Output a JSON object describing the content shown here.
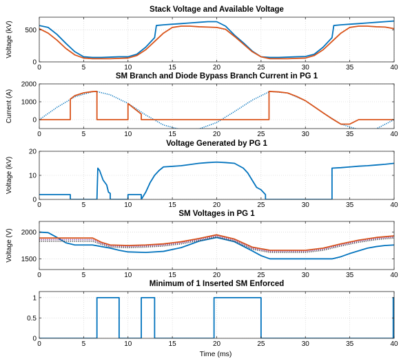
{
  "figure": {
    "xlabel": "Time (ms)"
  },
  "chart_data": [
    {
      "type": "line",
      "title": "Stack Voltage and Available Voltage",
      "ylabel": "Voltage (kV)",
      "xlim": [
        0,
        40
      ],
      "ylim": [
        0,
        700
      ],
      "xticks": [
        0,
        5,
        10,
        15,
        20,
        25,
        30,
        35,
        40
      ],
      "yticks": [
        0,
        500
      ],
      "grid": true,
      "series": [
        {
          "color": "#0072BD",
          "style": "solid",
          "x": [
            0,
            1,
            2,
            3,
            4,
            5,
            6,
            7,
            8,
            9,
            10,
            11,
            12,
            13,
            13.2,
            14,
            15,
            16,
            17,
            18,
            19,
            20,
            21,
            22,
            23,
            24,
            25,
            26,
            27,
            28,
            29,
            30,
            31,
            32,
            33,
            33.2,
            34,
            35,
            36,
            37,
            38,
            39,
            40
          ],
          "y": [
            570,
            540,
            430,
            290,
            160,
            80,
            70,
            70,
            75,
            80,
            80,
            120,
            230,
            380,
            570,
            580,
            590,
            600,
            610,
            620,
            630,
            630,
            560,
            420,
            300,
            170,
            80,
            70,
            70,
            75,
            80,
            85,
            120,
            230,
            380,
            570,
            580,
            590,
            600,
            610,
            620,
            630,
            640
          ]
        },
        {
          "color": "#D95319",
          "style": "solid",
          "x": [
            0,
            1,
            2,
            3,
            4,
            5,
            6,
            7,
            8,
            9,
            10,
            11,
            12,
            13,
            14,
            15,
            16,
            17,
            18,
            19,
            20,
            21,
            22,
            23,
            24,
            25,
            26,
            27,
            28,
            29,
            30,
            31,
            32,
            33,
            34,
            35,
            36,
            37,
            38,
            39,
            40
          ],
          "y": [
            520,
            450,
            340,
            210,
            110,
            60,
            50,
            50,
            50,
            55,
            60,
            100,
            190,
            320,
            450,
            540,
            560,
            560,
            550,
            545,
            540,
            510,
            400,
            280,
            160,
            80,
            50,
            50,
            50,
            55,
            60,
            100,
            190,
            320,
            450,
            540,
            560,
            560,
            550,
            545,
            520
          ]
        }
      ]
    },
    {
      "type": "line",
      "title": "SM Branch and Diode Bypass Branch Current in PG 1",
      "ylabel": "Current (A)",
      "xlim": [
        0,
        40
      ],
      "ylim": [
        -500,
        2000
      ],
      "xticks": [
        0,
        5,
        10,
        15,
        20,
        25,
        30,
        35,
        40
      ],
      "yticks": [
        0,
        1000,
        2000
      ],
      "grid": true,
      "series": [
        {
          "color": "#0072BD",
          "style": "dotted",
          "x": [
            0,
            2,
            4,
            6,
            6.4,
            8,
            10,
            12,
            14,
            16,
            18,
            20,
            22,
            24,
            26,
            28,
            30,
            32,
            34,
            36,
            38,
            40
          ],
          "y": [
            0,
            690,
            1280,
            1560,
            1580,
            1390,
            910,
            260,
            -300,
            -560,
            -520,
            -160,
            450,
            1090,
            1580,
            1490,
            1060,
            380,
            -250,
            -560,
            -510,
            0
          ]
        },
        {
          "color": "#D95319",
          "style": "solid",
          "x": [
            0,
            3.5,
            3.5,
            4,
            5,
            6,
            6.5,
            6.5,
            10,
            10,
            11.5,
            11.5,
            25.9,
            25.9,
            27,
            28,
            29,
            30,
            31,
            32,
            33,
            34,
            35,
            36,
            37,
            38,
            39,
            40
          ],
          "y": [
            0,
            0,
            1150,
            1340,
            1500,
            1570,
            1580,
            0,
            0,
            900,
            310,
            0,
            0,
            1580,
            1550,
            1490,
            1300,
            1060,
            720,
            380,
            50,
            -250,
            -250,
            0,
            0,
            0,
            0,
            0
          ]
        }
      ]
    },
    {
      "type": "line",
      "title": "Voltage Generated by PG 1",
      "ylabel": "Voltage (kV)",
      "xlim": [
        0,
        40
      ],
      "ylim": [
        0,
        20
      ],
      "xticks": [
        0,
        5,
        10,
        15,
        20,
        25,
        30,
        35,
        40
      ],
      "yticks": [
        0,
        10,
        20
      ],
      "grid": true,
      "series": [
        {
          "color": "#0072BD",
          "style": "solid",
          "x": [
            0,
            3.5,
            3.5,
            6.5,
            6.6,
            6.8,
            7,
            7.2,
            7.4,
            7.6,
            7.8,
            8,
            8,
            10,
            10,
            11.5,
            11.5,
            12,
            12.5,
            13,
            13.5,
            14,
            16,
            18,
            19,
            20,
            21,
            22,
            23,
            23.5,
            24,
            24.5,
            25,
            25.5,
            25.5,
            33,
            33,
            34,
            35,
            36,
            37,
            38,
            39,
            40
          ],
          "y": [
            2,
            2,
            0,
            0,
            13,
            12,
            10,
            8,
            7,
            6,
            3,
            2.5,
            0,
            0,
            2,
            2,
            0,
            3,
            7,
            10,
            12,
            13.5,
            14,
            15,
            15.3,
            15.5,
            15.3,
            15,
            13,
            11,
            8,
            5,
            4,
            2,
            0,
            0,
            13,
            13.2,
            13.5,
            13.8,
            14,
            14.3,
            14.6,
            15
          ]
        }
      ]
    },
    {
      "type": "line",
      "title": "SM Voltages in PG 1",
      "ylabel": "Voltage (V)",
      "xlim": [
        0,
        40
      ],
      "ylim": [
        1300,
        2200
      ],
      "xticks": [
        0,
        5,
        10,
        15,
        20,
        25,
        30,
        35,
        40
      ],
      "yticks": [
        1500,
        2000
      ],
      "grid": true,
      "series": [
        {
          "color": "#0072BD",
          "style": "solid",
          "x": [
            0,
            1,
            2,
            3,
            4,
            5,
            6,
            7,
            8,
            9,
            10,
            12,
            14,
            16,
            18,
            20,
            22,
            24,
            25,
            26,
            27,
            30,
            32,
            33,
            34,
            35,
            36,
            37,
            38,
            39,
            40
          ],
          "y": [
            2000,
            1990,
            1900,
            1800,
            1760,
            1760,
            1760,
            1730,
            1700,
            1660,
            1630,
            1620,
            1640,
            1710,
            1830,
            1900,
            1820,
            1650,
            1560,
            1500,
            1500,
            1500,
            1500,
            1500,
            1540,
            1600,
            1650,
            1700,
            1730,
            1750,
            1760
          ]
        },
        {
          "color": "#D95319",
          "style": "solid",
          "x": [
            0,
            2,
            4,
            6,
            7,
            8,
            10,
            12,
            14,
            16,
            18,
            20,
            22,
            24,
            26,
            28,
            30,
            32,
            34,
            36,
            38,
            40
          ],
          "y": [
            1890,
            1890,
            1890,
            1890,
            1810,
            1760,
            1750,
            1760,
            1780,
            1820,
            1880,
            1950,
            1870,
            1720,
            1660,
            1660,
            1660,
            1700,
            1780,
            1850,
            1900,
            1930
          ]
        },
        {
          "color": "#7E2F8E",
          "style": "dotted",
          "x": [
            0,
            2,
            4,
            6,
            7,
            8,
            10,
            12,
            14,
            16,
            18,
            20,
            22,
            24,
            26,
            28,
            30,
            32,
            34,
            36,
            38,
            40
          ],
          "y": [
            1860,
            1860,
            1860,
            1860,
            1790,
            1740,
            1730,
            1740,
            1760,
            1800,
            1860,
            1930,
            1850,
            1700,
            1640,
            1640,
            1640,
            1680,
            1760,
            1830,
            1880,
            1910
          ]
        },
        {
          "color": "#404040",
          "style": "dotted",
          "x": [
            0,
            2,
            4,
            6,
            7,
            8,
            10,
            12,
            14,
            16,
            18,
            20,
            22,
            24,
            26,
            28,
            30,
            32,
            34,
            36,
            38,
            40
          ],
          "y": [
            1830,
            1830,
            1830,
            1830,
            1770,
            1720,
            1710,
            1720,
            1740,
            1780,
            1840,
            1910,
            1830,
            1680,
            1620,
            1620,
            1620,
            1660,
            1740,
            1810,
            1860,
            1890
          ]
        }
      ]
    },
    {
      "type": "line",
      "title": "Minimum of 1 Inserted SM Enforced",
      "ylabel": "",
      "xlim": [
        0,
        40
      ],
      "ylim": [
        0,
        1.15
      ],
      "xticks": [
        0,
        5,
        10,
        15,
        20,
        25,
        30,
        35,
        40
      ],
      "yticks": [
        0,
        0.5,
        1
      ],
      "grid": true,
      "series": [
        {
          "color": "#0072BD",
          "style": "solid",
          "x": [
            0,
            6.5,
            6.5,
            9,
            9,
            11.5,
            11.5,
            13,
            13,
            19.7,
            19.7,
            25,
            25,
            39.9,
            39.9,
            40
          ],
          "y": [
            0,
            0,
            1,
            1,
            0,
            0,
            1,
            1,
            0,
            0,
            1,
            1,
            0,
            0,
            1,
            1
          ]
        }
      ]
    }
  ]
}
